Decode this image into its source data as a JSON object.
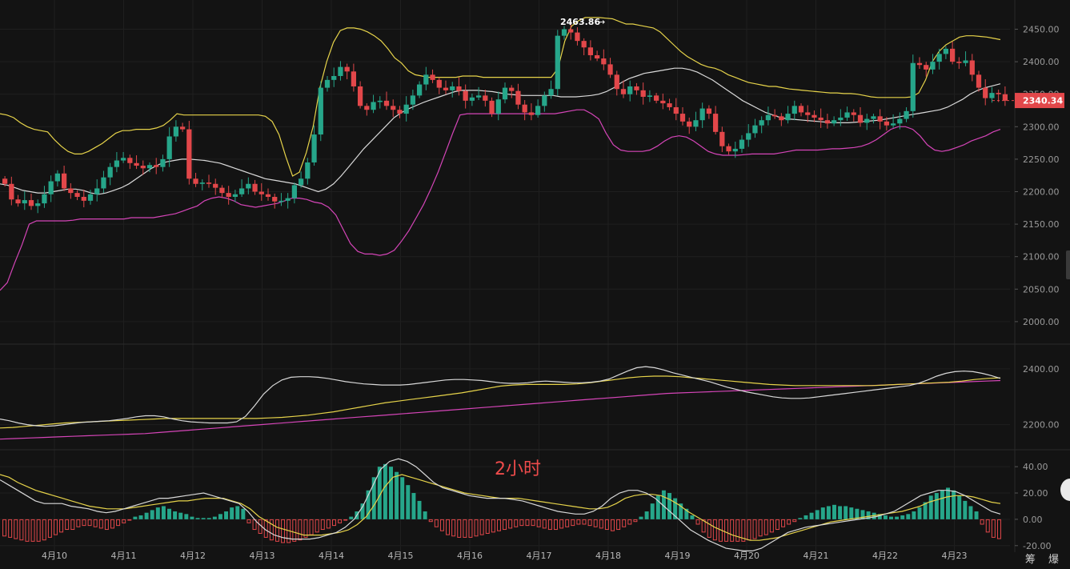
{
  "annotation": "2小时",
  "brand": "筹 爆",
  "colors": {
    "up": "#26a68a",
    "down": "#e2474a",
    "boll_mid": "#d9d9d9",
    "boll_upper": "#e6d34a",
    "boll_lower": "#d545b8",
    "ma_white": "#d9d9d9",
    "ma_yellow": "#e6d34a",
    "ma_pink": "#d545b8",
    "price_tag": "#e2474a"
  },
  "chart_data": {
    "type": "candlestick",
    "x_labels": [
      "4月10",
      "4月11",
      "4月12",
      "4月13",
      "4月14",
      "4月15",
      "4月16",
      "4月17",
      "4月18",
      "4月19",
      "4月20",
      "4月21",
      "4月22",
      "4月23"
    ],
    "main": {
      "y_ticks": [
        "2450.00",
        "2400.00",
        "2350.00",
        "2300.00",
        "2250.00",
        "2200.00",
        "2150.00",
        "2100.00",
        "2050.00",
        "2000.00"
      ],
      "ylim": [
        1990,
        2495
      ],
      "high_label": "2463.86",
      "last_price": "2340.34",
      "close": [
        2212,
        2188,
        2182,
        2187,
        2178,
        2182,
        2196,
        2216,
        2228,
        2205,
        2198,
        2192,
        2186,
        2196,
        2205,
        2222,
        2238,
        2248,
        2252,
        2244,
        2240,
        2236,
        2241,
        2238,
        2250,
        2285,
        2300,
        2296,
        2220,
        2212,
        2214,
        2212,
        2206,
        2198,
        2192,
        2196,
        2205,
        2212,
        2200,
        2196,
        2192,
        2185,
        2186,
        2190,
        2210,
        2220,
        2245,
        2288,
        2360,
        2372,
        2378,
        2392,
        2385,
        2362,
        2332,
        2326,
        2338,
        2340,
        2332,
        2326,
        2320,
        2334,
        2348,
        2365,
        2380,
        2372,
        2360,
        2356,
        2362,
        2355,
        2340,
        2345,
        2348,
        2340,
        2320,
        2342,
        2360,
        2355,
        2334,
        2322,
        2318,
        2332,
        2348,
        2358,
        2440,
        2450,
        2445,
        2432,
        2422,
        2410,
        2405,
        2396,
        2380,
        2358,
        2350,
        2362,
        2356,
        2346,
        2348,
        2340,
        2336,
        2330,
        2320,
        2308,
        2300,
        2310,
        2328,
        2320,
        2292,
        2270,
        2262,
        2266,
        2280,
        2290,
        2302,
        2310,
        2318,
        2316,
        2310,
        2320,
        2332,
        2322,
        2318,
        2314,
        2310,
        2305,
        2310,
        2314,
        2322,
        2318,
        2306,
        2312,
        2316,
        2308,
        2302,
        2305,
        2312,
        2324,
        2398,
        2395,
        2388,
        2400,
        2412,
        2420,
        2400,
        2398,
        2402,
        2380,
        2360,
        2344,
        2352,
        2350,
        2340
      ],
      "boll_upper": [
        2320,
        2318,
        2314,
        2306,
        2300,
        2296,
        2294,
        2292,
        2280,
        2270,
        2262,
        2258,
        2258,
        2262,
        2268,
        2274,
        2282,
        2290,
        2294,
        2294,
        2296,
        2296,
        2296,
        2298,
        2302,
        2310,
        2320,
        2318,
        2318,
        2318,
        2318,
        2318,
        2318,
        2318,
        2318,
        2318,
        2318,
        2318,
        2318,
        2316,
        2308,
        2288,
        2254,
        2224,
        2230,
        2260,
        2300,
        2360,
        2400,
        2430,
        2448,
        2452,
        2452,
        2450,
        2446,
        2440,
        2432,
        2420,
        2406,
        2398,
        2386,
        2380,
        2378,
        2376,
        2376,
        2376,
        2376,
        2376,
        2378,
        2378,
        2378,
        2376,
        2376,
        2376,
        2376,
        2376,
        2376,
        2376,
        2376,
        2376,
        2376,
        2376,
        2390,
        2432,
        2455,
        2463,
        2468,
        2468,
        2468,
        2467,
        2466,
        2462,
        2458,
        2458,
        2456,
        2454,
        2452,
        2446,
        2436,
        2426,
        2416,
        2408,
        2402,
        2396,
        2392,
        2390,
        2386,
        2380,
        2376,
        2372,
        2368,
        2366,
        2364,
        2362,
        2362,
        2360,
        2358,
        2357,
        2356,
        2355,
        2354,
        2353,
        2352,
        2352,
        2351,
        2351,
        2350,
        2348,
        2346,
        2345,
        2345,
        2345,
        2345,
        2345,
        2346,
        2352,
        2372,
        2400,
        2416,
        2426,
        2432,
        2438,
        2440,
        2440,
        2439,
        2438,
        2436,
        2434
      ],
      "boll_mid": [
        2212,
        2210,
        2206,
        2202,
        2200,
        2198,
        2198,
        2200,
        2202,
        2204,
        2204,
        2202,
        2198,
        2196,
        2198,
        2202,
        2206,
        2212,
        2220,
        2228,
        2236,
        2242,
        2246,
        2248,
        2250,
        2250,
        2249,
        2248,
        2246,
        2244,
        2240,
        2236,
        2232,
        2228,
        2224,
        2220,
        2218,
        2216,
        2214,
        2212,
        2208,
        2204,
        2200,
        2204,
        2212,
        2224,
        2238,
        2252,
        2266,
        2278,
        2290,
        2302,
        2314,
        2322,
        2328,
        2333,
        2338,
        2342,
        2346,
        2350,
        2354,
        2356,
        2356,
        2356,
        2355,
        2354,
        2352,
        2350,
        2349,
        2348,
        2348,
        2348,
        2348,
        2348,
        2346,
        2346,
        2346,
        2347,
        2348,
        2350,
        2354,
        2360,
        2368,
        2374,
        2378,
        2382,
        2384,
        2386,
        2388,
        2390,
        2390,
        2388,
        2384,
        2378,
        2372,
        2364,
        2356,
        2348,
        2340,
        2334,
        2328,
        2322,
        2318,
        2314,
        2312,
        2311,
        2310,
        2309,
        2308,
        2307,
        2306,
        2306,
        2306,
        2307,
        2308,
        2309,
        2310,
        2312,
        2314,
        2316,
        2318,
        2320,
        2322,
        2324,
        2326,
        2330,
        2336,
        2342,
        2350,
        2356,
        2360,
        2363,
        2366
      ],
      "boll_lower": [
        2048,
        2060,
        2090,
        2118,
        2150,
        2155,
        2155,
        2155,
        2155,
        2155,
        2156,
        2158,
        2158,
        2158,
        2158,
        2158,
        2158,
        2158,
        2160,
        2160,
        2160,
        2160,
        2162,
        2164,
        2166,
        2170,
        2174,
        2178,
        2186,
        2190,
        2192,
        2190,
        2186,
        2180,
        2178,
        2176,
        2178,
        2180,
        2182,
        2186,
        2190,
        2190,
        2188,
        2184,
        2182,
        2176,
        2164,
        2142,
        2120,
        2108,
        2104,
        2104,
        2102,
        2104,
        2110,
        2124,
        2140,
        2160,
        2180,
        2204,
        2230,
        2260,
        2290,
        2318,
        2320,
        2320,
        2320,
        2320,
        2320,
        2320,
        2320,
        2320,
        2320,
        2320,
        2320,
        2320,
        2320,
        2322,
        2324,
        2326,
        2326,
        2320,
        2312,
        2290,
        2272,
        2264,
        2262,
        2262,
        2262,
        2264,
        2270,
        2278,
        2284,
        2286,
        2284,
        2278,
        2270,
        2262,
        2258,
        2256,
        2256,
        2256,
        2257,
        2258,
        2258,
        2258,
        2258,
        2260,
        2262,
        2264,
        2264,
        2264,
        2264,
        2265,
        2266,
        2266,
        2267,
        2268,
        2270,
        2274,
        2280,
        2288,
        2296,
        2300,
        2300,
        2296,
        2286,
        2272,
        2264,
        2262,
        2264,
        2268,
        2272,
        2278,
        2282,
        2286,
        2292,
        2296
      ]
    },
    "ma": {
      "y_ticks": [
        "2400.00",
        "2200.00"
      ],
      "ylim": [
        2130,
        2460
      ],
      "white": [
        2220,
        2214,
        2206,
        2200,
        2196,
        2194,
        2196,
        2200,
        2204,
        2208,
        2210,
        2212,
        2214,
        2218,
        2222,
        2228,
        2232,
        2232,
        2228,
        2220,
        2214,
        2210,
        2208,
        2206,
        2206,
        2206,
        2210,
        2230,
        2268,
        2310,
        2340,
        2360,
        2370,
        2372,
        2372,
        2370,
        2366,
        2360,
        2354,
        2350,
        2346,
        2344,
        2342,
        2342,
        2342,
        2344,
        2348,
        2352,
        2356,
        2360,
        2362,
        2362,
        2360,
        2358,
        2354,
        2350,
        2348,
        2348,
        2350,
        2354,
        2356,
        2354,
        2352,
        2350,
        2350,
        2352,
        2356,
        2364,
        2378,
        2392,
        2404,
        2408,
        2404,
        2396,
        2386,
        2378,
        2370,
        2362,
        2354,
        2344,
        2334,
        2326,
        2318,
        2312,
        2306,
        2300,
        2296,
        2294,
        2294,
        2296,
        2300,
        2304,
        2308,
        2312,
        2316,
        2320,
        2324,
        2328,
        2332,
        2336,
        2340,
        2348,
        2360,
        2374,
        2384,
        2390,
        2392,
        2390,
        2384,
        2376,
        2366
      ],
      "yellow": [
        2188,
        2190,
        2194,
        2198,
        2202,
        2206,
        2208,
        2210,
        2212,
        2214,
        2216,
        2218,
        2220,
        2222,
        2222,
        2222,
        2222,
        2222,
        2222,
        2222,
        2222,
        2224,
        2226,
        2230,
        2234,
        2240,
        2246,
        2254,
        2262,
        2270,
        2278,
        2284,
        2290,
        2296,
        2302,
        2308,
        2314,
        2322,
        2330,
        2338,
        2342,
        2344,
        2344,
        2344,
        2344,
        2346,
        2350,
        2356,
        2362,
        2368,
        2372,
        2374,
        2374,
        2372,
        2368,
        2364,
        2360,
        2356,
        2352,
        2348,
        2344,
        2342,
        2340,
        2340,
        2340,
        2340,
        2340,
        2340,
        2340,
        2342,
        2344,
        2346,
        2348,
        2350,
        2352,
        2356,
        2362,
        2366,
        2368
      ],
      "pink": [
        2148,
        2150,
        2152,
        2154,
        2156,
        2158,
        2160,
        2162,
        2164,
        2166,
        2168,
        2172,
        2176,
        2180,
        2184,
        2188,
        2192,
        2196,
        2200,
        2204,
        2208,
        2212,
        2216,
        2220,
        2224,
        2228,
        2232,
        2236,
        2240,
        2244,
        2248,
        2252,
        2256,
        2260,
        2264,
        2268,
        2272,
        2276,
        2280,
        2284,
        2288,
        2292,
        2296,
        2300,
        2304,
        2308,
        2312,
        2314,
        2316,
        2318,
        2320,
        2322,
        2324,
        2326,
        2328,
        2330,
        2332,
        2334,
        2336,
        2338,
        2340,
        2342,
        2344,
        2346,
        2348,
        2350,
        2352,
        2354,
        2356,
        2358
      ]
    },
    "macd": {
      "y_ticks": [
        "40.00",
        "20.00",
        "0.00",
        "-20.00"
      ],
      "ylim": [
        -25,
        48
      ],
      "hist": [
        -13,
        -14,
        -15,
        -16,
        -17,
        -17,
        -17,
        -16,
        -14,
        -12,
        -10,
        -8,
        -8,
        -6,
        -5,
        -5,
        -6,
        -7,
        -8,
        -7,
        -5,
        -3,
        -1,
        2,
        3,
        5,
        7,
        9,
        10,
        8,
        6,
        5,
        4,
        2,
        1,
        1,
        1,
        2,
        4,
        6,
        9,
        10,
        8,
        -3,
        -8,
        -11,
        -14,
        -16,
        -17,
        -18,
        -18,
        -17,
        -16,
        -14,
        -12,
        -10,
        -8,
        -7,
        -5,
        -3,
        -1,
        2,
        6,
        12,
        22,
        32,
        40,
        42,
        40,
        36,
        32,
        26,
        20,
        14,
        6,
        -2,
        -6,
        -9,
        -12,
        -13,
        -14,
        -14,
        -14,
        -13,
        -12,
        -11,
        -10,
        -9,
        -8,
        -7,
        -6,
        -5,
        -5,
        -5,
        -6,
        -7,
        -8,
        -8,
        -7,
        -6,
        -5,
        -4,
        -4,
        -5,
        -6,
        -7,
        -8,
        -9,
        -8,
        -6,
        -4,
        -2,
        2,
        6,
        12,
        18,
        22,
        20,
        16,
        12,
        8,
        3,
        -4,
        -10,
        -14,
        -16,
        -17,
        -17,
        -17,
        -17,
        -17,
        -16,
        -15,
        -13,
        -12,
        -10,
        -8,
        -6,
        -4,
        -2,
        1,
        3,
        5,
        7,
        9,
        10,
        11,
        10,
        10,
        9,
        8,
        7,
        6,
        5,
        4,
        3,
        2,
        2,
        3,
        4,
        6,
        9,
        13,
        18,
        20,
        22,
        24,
        22,
        18,
        14,
        10,
        6,
        -4,
        -10,
        -14,
        -15
      ],
      "dif": [
        30,
        26,
        22,
        18,
        14,
        12,
        12,
        12,
        10,
        9,
        8,
        6,
        5,
        6,
        8,
        10,
        12,
        14,
        16,
        16,
        17,
        18,
        19,
        20,
        18,
        16,
        14,
        12,
        6,
        -2,
        -8,
        -12,
        -14,
        -15,
        -15,
        -15,
        -14,
        -12,
        -10,
        -6,
        0,
        10,
        24,
        38,
        44,
        46,
        44,
        40,
        34,
        28,
        24,
        22,
        20,
        18,
        17,
        16,
        16,
        16,
        15,
        14,
        12,
        10,
        8,
        6,
        5,
        4,
        4,
        6,
        10,
        16,
        20,
        22,
        22,
        20,
        16,
        10,
        4,
        -2,
        -8,
        -12,
        -16,
        -19,
        -22,
        -23,
        -24,
        -24,
        -22,
        -18,
        -14,
        -10,
        -8,
        -6,
        -5,
        -4,
        -3,
        -2,
        -1,
        0,
        1,
        2,
        4,
        6,
        10,
        14,
        18,
        20,
        22,
        22,
        21,
        18,
        14,
        10,
        6,
        4
      ],
      "dea": [
        34,
        32,
        28,
        25,
        22,
        20,
        18,
        16,
        14,
        12,
        10,
        9,
        8,
        8,
        8,
        9,
        10,
        11,
        12,
        13,
        14,
        14,
        15,
        16,
        16,
        16,
        14,
        12,
        8,
        2,
        -2,
        -6,
        -8,
        -10,
        -12,
        -12,
        -12,
        -11,
        -10,
        -8,
        -4,
        2,
        12,
        24,
        32,
        34,
        32,
        30,
        28,
        26,
        24,
        22,
        20,
        19,
        18,
        17,
        16,
        16,
        16,
        15,
        14,
        13,
        12,
        11,
        10,
        9,
        8,
        8,
        9,
        12,
        16,
        18,
        19,
        19,
        18,
        15,
        11,
        6,
        2,
        -2,
        -6,
        -9,
        -12,
        -14,
        -16,
        -16,
        -15,
        -14,
        -12,
        -10,
        -8,
        -6,
        -4,
        -2,
        -1,
        0,
        1,
        2,
        3,
        4,
        5,
        6,
        8,
        10,
        13,
        15,
        17,
        18,
        18,
        17,
        15,
        13,
        12
      ]
    }
  }
}
